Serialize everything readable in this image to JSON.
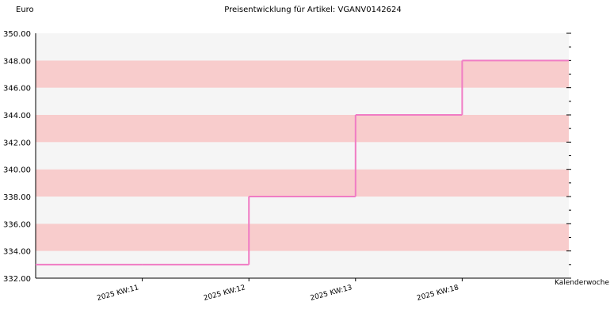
{
  "chart_data": {
    "type": "step",
    "title": "Preisentwicklung für Artikel: VGANV0142624",
    "y_label": "Euro",
    "x_label": "Kalenderwoche",
    "categories": [
      null,
      "2025 KW:11",
      "2025 KW:12",
      "2025 KW:13",
      "2025 KW:18",
      null
    ],
    "values": [
      333,
      333,
      338,
      344,
      348,
      348
    ],
    "color": "#f07cc4",
    "band_colors": [
      "#f5f5f5",
      "#f8cccc"
    ],
    "ylim": [
      332,
      350
    ],
    "yticks": [
      {
        "value": 332,
        "label": "332.00"
      },
      {
        "value": 334,
        "label": "334.00"
      },
      {
        "value": 336,
        "label": "336.00"
      },
      {
        "value": 338,
        "label": "338.00"
      },
      {
        "value": 340,
        "label": "340.00"
      },
      {
        "value": 342,
        "label": "342.00"
      },
      {
        "value": 344,
        "label": "344.00"
      },
      {
        "value": 346,
        "label": "346.00"
      },
      {
        "value": 348,
        "label": "348.00"
      },
      {
        "value": 350,
        "label": "350.00"
      }
    ]
  }
}
